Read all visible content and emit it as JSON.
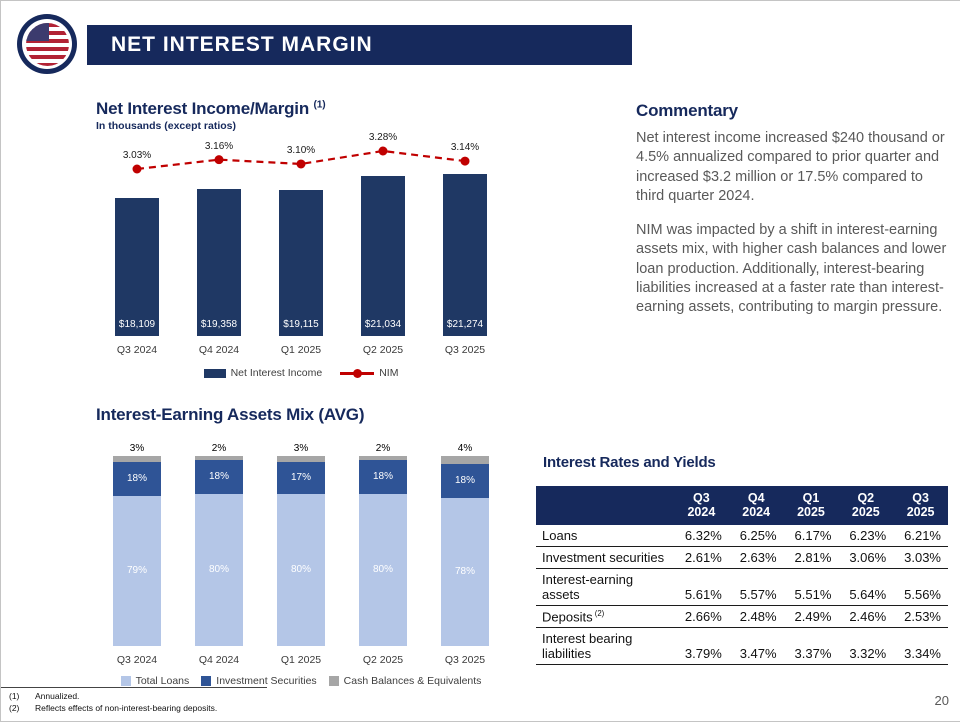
{
  "slide": {
    "title": "NET INTEREST MARGIN",
    "page_number": "20",
    "footnotes": [
      {
        "num": "(1)",
        "text": "Annualized."
      },
      {
        "num": "(2)",
        "text": "Reflects effects of non-interest-bearing deposits."
      }
    ]
  },
  "colors": {
    "accent_navy": "#16295C",
    "bar_navy": "#1F3864",
    "nim_red": "#C00000",
    "loans_light_blue": "#B4C6E7",
    "securities_navy": "#2F5496",
    "cash_gray": "#A6A6A6",
    "body_text_gray": "#595959"
  },
  "commentary": {
    "title": "Commentary",
    "paragraphs": [
      "Net interest income increased $240 thousand or 4.5% annualized compared to prior quarter and increased $3.2 million or 17.5% compared to third quarter 2024.",
      "NIM was impacted by a shift in interest-earning assets mix, with higher cash balances and lower loan production. Additionally, interest-bearing liabilities increased at a faster rate than interest-earning assets, contributing to margin pressure."
    ]
  },
  "chart_data": [
    {
      "id": "income",
      "type": "bar",
      "title": "Net Interest Income/Margin",
      "title_superscript": "(1)",
      "subtitle": "In thousands (except ratios)",
      "categories": [
        "Q3 2024",
        "Q4 2024",
        "Q1 2025",
        "Q2 2025",
        "Q3 2025"
      ],
      "legend_position": "bottom",
      "series": [
        {
          "name": "Net Interest Income",
          "type": "bar",
          "color": "#1F3864",
          "values": [
            18109,
            19358,
            19115,
            21034,
            21274
          ],
          "labels": [
            "$18,109",
            "$19,358",
            "$19,115",
            "$21,034",
            "$21,274"
          ]
        },
        {
          "name": "NIM",
          "type": "line",
          "color": "#C00000",
          "values": [
            3.03,
            3.16,
            3.1,
            3.28,
            3.14
          ],
          "labels": [
            "3.03%",
            "3.16%",
            "3.10%",
            "3.28%",
            "3.14%"
          ]
        }
      ]
    },
    {
      "id": "mix",
      "type": "stacked-bar",
      "title": "Interest-Earning Assets Mix (AVG)",
      "categories": [
        "Q3 2024",
        "Q4 2024",
        "Q1 2025",
        "Q2 2025",
        "Q3 2025"
      ],
      "ylim": [
        0,
        100
      ],
      "legend_position": "bottom",
      "series": [
        {
          "name": "Total Loans",
          "color": "#B4C6E7",
          "label_color": "#FFFFFF",
          "values": [
            79,
            80,
            80,
            80,
            78
          ],
          "labels": [
            "79%",
            "80%",
            "80%",
            "80%",
            "78%"
          ]
        },
        {
          "name": "Investment Securities",
          "color": "#2F5496",
          "label_color": "#FFFFFF",
          "values": [
            18,
            18,
            17,
            18,
            18
          ],
          "labels": [
            "18%",
            "18%",
            "17%",
            "18%",
            "18%"
          ]
        },
        {
          "name": "Cash Balances & Equivalents",
          "color": "#A6A6A6",
          "label_color": "#000000",
          "label_outside": true,
          "values": [
            3,
            2,
            3,
            2,
            4
          ],
          "labels": [
            "3%",
            "2%",
            "3%",
            "2%",
            "4%"
          ]
        }
      ]
    },
    {
      "id": "rates",
      "type": "table",
      "title": "Interest Rates and Yields",
      "columns": [
        "Q3 2024",
        "Q4 2024",
        "Q1 2025",
        "Q2 2025",
        "Q3 2025"
      ],
      "rows": [
        {
          "label": "Loans",
          "sup": "",
          "values": [
            "6.32%",
            "6.25%",
            "6.17%",
            "6.23%",
            "6.21%"
          ]
        },
        {
          "label": "Investment securities",
          "sup": "",
          "values": [
            "2.61%",
            "2.63%",
            "2.81%",
            "3.06%",
            "3.03%"
          ]
        },
        {
          "label": "Interest-earning assets",
          "sup": "",
          "values": [
            "5.61%",
            "5.57%",
            "5.51%",
            "5.64%",
            "5.56%"
          ]
        },
        {
          "label": "Deposits",
          "sup": "(2)",
          "values": [
            "2.66%",
            "2.48%",
            "2.49%",
            "2.46%",
            "2.53%"
          ]
        },
        {
          "label": "Interest bearing liabilities",
          "sup": "",
          "values": [
            "3.79%",
            "3.47%",
            "3.37%",
            "3.32%",
            "3.34%"
          ]
        }
      ]
    }
  ]
}
